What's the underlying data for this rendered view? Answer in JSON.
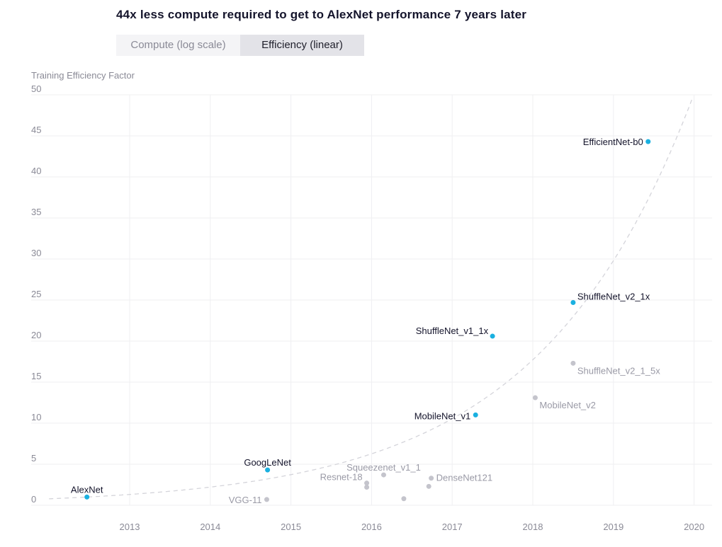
{
  "chart_data": {
    "type": "scatter",
    "title": "44x less compute required to get to AlexNet performance 7 years later",
    "tabs": [
      "Compute (log scale)",
      "Efficiency (linear)"
    ],
    "active_tab": "Efficiency (linear)",
    "ylabel": "Training Efficiency Factor",
    "xlabel": "",
    "x_ticks": [
      "2013",
      "2014",
      "2015",
      "2016",
      "2017",
      "2018",
      "2019",
      "2020"
    ],
    "y_ticks": [
      "0",
      "5",
      "10",
      "15",
      "20",
      "25",
      "30",
      "35",
      "40",
      "45",
      "50"
    ],
    "xlim": [
      2012.0,
      2020.25
    ],
    "ylim": [
      0,
      50
    ],
    "grid": true,
    "trend": {
      "style": "dashed",
      "doubling_months": 16
    },
    "colors": {
      "highlight": "#1ab0e0",
      "muted": "#c4c4cc",
      "highlight_text": "#14142b",
      "muted_text": "#9a9aa6",
      "grid": "#efeff2",
      "trend": "#d4d4da"
    },
    "series": [
      {
        "name": "Highlighted",
        "points": [
          {
            "label": "AlexNet",
            "x": 2012.47,
            "y": 1.0
          },
          {
            "label": "GoogLeNet",
            "x": 2014.71,
            "y": 4.3
          },
          {
            "label": "MobileNet_v1",
            "x": 2017.29,
            "y": 11.0
          },
          {
            "label": "ShuffleNet_v1_1x",
            "x": 2017.5,
            "y": 20.6
          },
          {
            "label": "ShuffleNet_v2_1x",
            "x": 2018.5,
            "y": 24.7
          },
          {
            "label": "EfficientNet-b0",
            "x": 2019.43,
            "y": 44.3
          }
        ]
      },
      {
        "name": "Other",
        "points": [
          {
            "label": "VGG-11",
            "x": 2014.7,
            "y": 0.7
          },
          {
            "label": "Resnet-18",
            "x": 2015.94,
            "y": 2.7
          },
          {
            "label": "",
            "x": 2015.94,
            "y": 2.2
          },
          {
            "label": "Squeezenet_v1_1",
            "x": 2016.15,
            "y": 3.7
          },
          {
            "label": "",
            "x": 2016.4,
            "y": 0.8
          },
          {
            "label": "DenseNet121",
            "x": 2016.74,
            "y": 3.3
          },
          {
            "label": "",
            "x": 2016.71,
            "y": 2.3
          },
          {
            "label": "MobileNet_v2",
            "x": 2018.03,
            "y": 13.1
          },
          {
            "label": "ShuffleNet_v2_1_5x",
            "x": 2018.5,
            "y": 17.3
          }
        ]
      }
    ]
  }
}
